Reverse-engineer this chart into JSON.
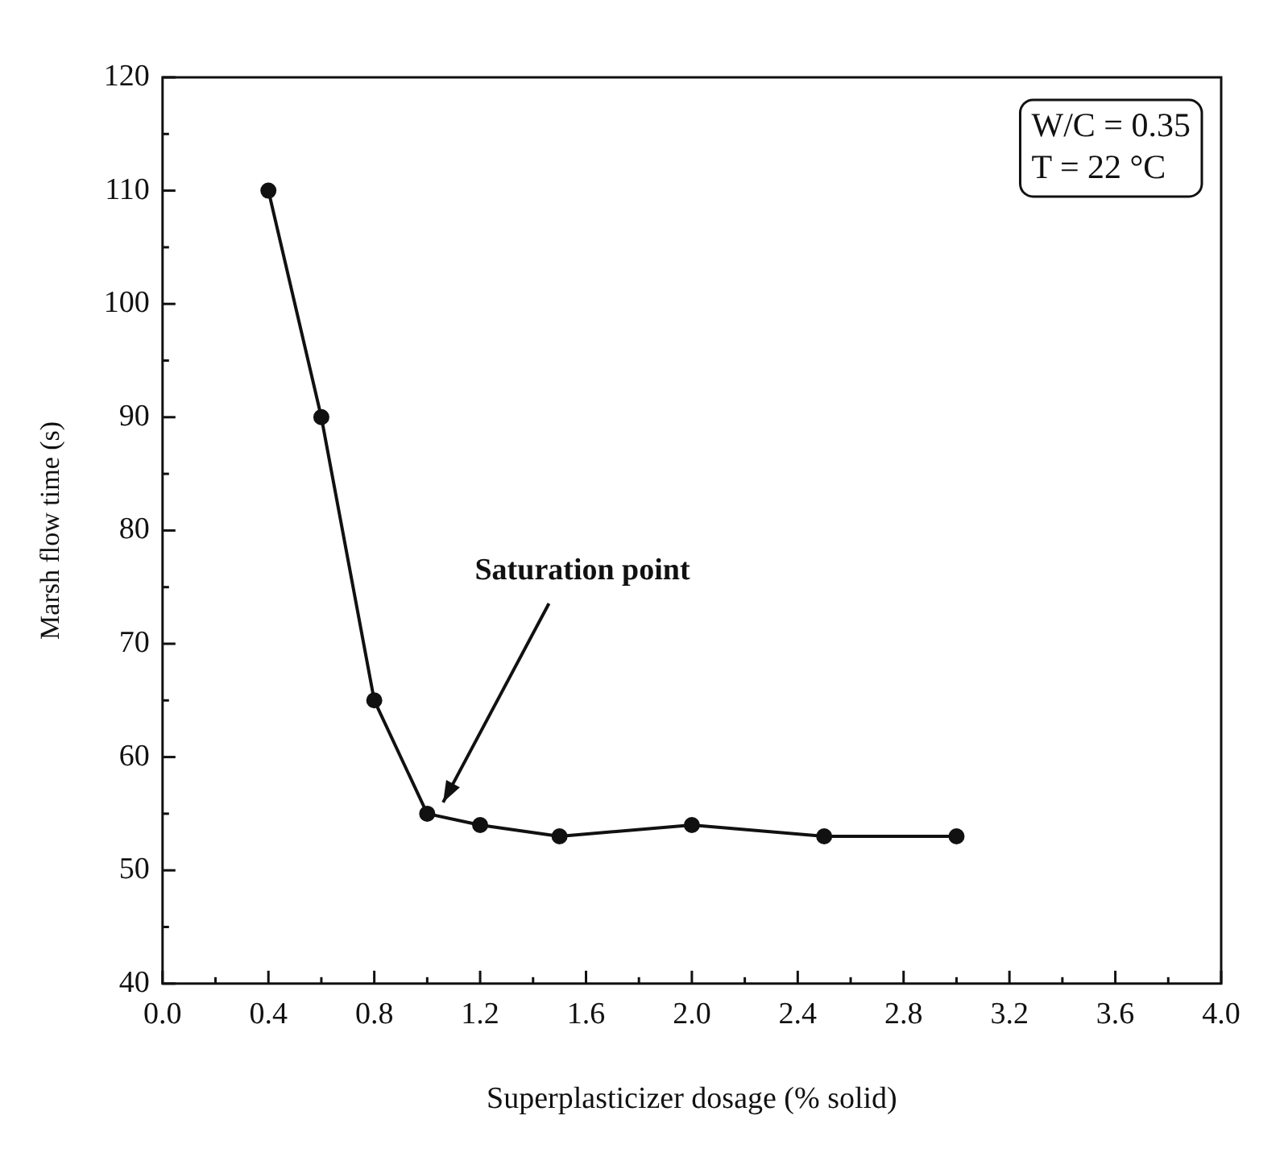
{
  "chart_data": {
    "type": "line",
    "xlabel": "Superplasticizer dosage (% solid)",
    "ylabel": "Marsh flow time (s)",
    "x": [
      0.4,
      0.6,
      0.8,
      1.0,
      1.2,
      1.5,
      2.0,
      2.5,
      3.0
    ],
    "series": [
      {
        "color": "#111111",
        "values": [
          110,
          90,
          65,
          55,
          54,
          53,
          54,
          53,
          53
        ]
      }
    ],
    "xlim": [
      0.0,
      4.0
    ],
    "xticks": [
      {
        "value": 0,
        "label": "0.0"
      },
      0.4,
      0.8,
      1.2,
      1.6,
      {
        "value": 2,
        "label": "2.0"
      },
      2.4,
      2.8,
      3.2,
      3.6,
      {
        "value": 4,
        "label": "4.0"
      }
    ],
    "ylim": [
      40,
      120
    ],
    "yticks": [
      40,
      50,
      60,
      70,
      80,
      90,
      100,
      110,
      120
    ],
    "marker": "circle",
    "line_style": "solid",
    "grid": false,
    "legend": false,
    "annotations": [
      "Saturation point",
      "W/C = 0.35",
      "T = 22 °C"
    ]
  }
}
